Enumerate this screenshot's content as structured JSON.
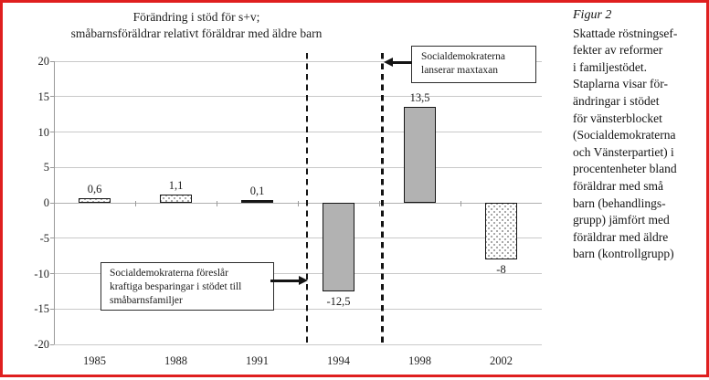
{
  "frame": {
    "border_color": "#df1f1f"
  },
  "chart_data": {
    "type": "bar",
    "title": "Förändring i stöd för s+v;\nsmåbarnsföräldrar relativt föräldrar med äldre barn",
    "categories": [
      "1985",
      "1988",
      "1991",
      "1994",
      "1998",
      "2002"
    ],
    "values": [
      0.6,
      1.1,
      0.1,
      -12.5,
      13.5,
      -8
    ],
    "value_labels": [
      "0,6",
      "1,1",
      "0,1",
      "-12,5",
      "13,5",
      "-8"
    ],
    "bar_styles": [
      "dotted",
      "dotted",
      "tiny",
      "gray",
      "gray",
      "dotted"
    ],
    "xlabel": "",
    "ylabel": "",
    "ylim": [
      -20,
      20
    ],
    "ytick_step": 5,
    "ytick_labels": [
      "20",
      "15",
      "10",
      "5",
      "0",
      "-5",
      "-10",
      "-15",
      "-20"
    ],
    "grid": true,
    "legend": "none",
    "bar_fill_gray": "#b2b2b2",
    "event_lines_between": [
      "1991|1994",
      "1994|1998"
    ],
    "annotations": [
      {
        "id": "savings",
        "text": "Socialdemokraterna föreslår\nkraftiga besparingar i stödet till\nsmåbarnsfamiljer",
        "arrow": "points-right-to-1994-line"
      },
      {
        "id": "maxtaxa",
        "text": "Socialdemokraterna\nlanserar maxtaxan",
        "arrow": "points-left-to-1998-line"
      }
    ]
  },
  "caption": {
    "figure_label": "Figur 2",
    "text": "Skattade röstningsef-\nfekter av reformer\ni familjestödet.\nStaplarna visar för-\nändringar i stödet\nför vänsterblocket\n(Socialdemokraterna\noch Vänsterpartiet) i\nprocentenheter bland\nföräldrar med små\nbarn (behandlings-\ngrupp) jämfört med\nföräldrar med äldre\nbarn (kontrollgrupp)"
  }
}
